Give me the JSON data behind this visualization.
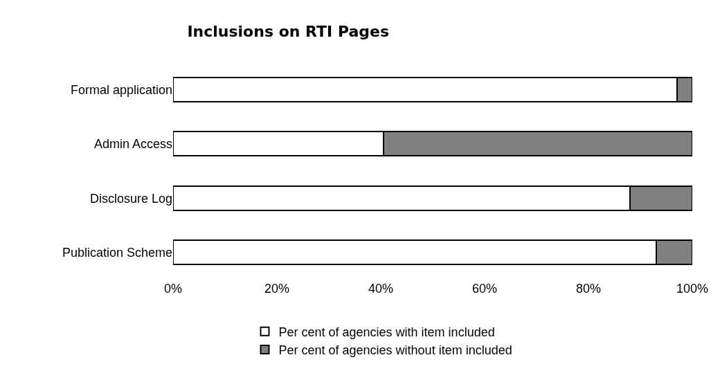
{
  "chart_data": {
    "type": "bar",
    "title": "Inclusions on RTI Pages",
    "orientation": "horizontal",
    "stacked": true,
    "categories": [
      "Formal application",
      "Admin Access",
      "Disclosure Log",
      "Publication Scheme"
    ],
    "series": [
      {
        "name": "Per cent of agencies with item included",
        "color": "#ffffff",
        "values": [
          97,
          40.5,
          88,
          93
        ]
      },
      {
        "name": "Per cent of agencies without item included",
        "color": "#808080",
        "values": [
          3,
          59.5,
          12,
          7
        ]
      }
    ],
    "xlim": [
      0,
      100
    ],
    "xticks": [
      {
        "value": 0,
        "label": "0%"
      },
      {
        "value": 20,
        "label": "20%"
      },
      {
        "value": 40,
        "label": "40%"
      },
      {
        "value": 60,
        "label": "60%"
      },
      {
        "value": 80,
        "label": "80%"
      },
      {
        "value": 100,
        "label": "100%"
      }
    ],
    "grid": false,
    "legend": "bottom"
  }
}
